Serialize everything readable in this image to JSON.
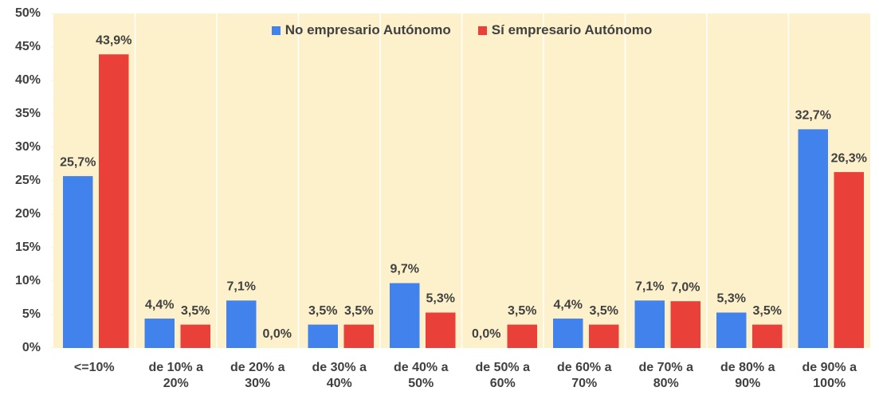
{
  "chart_data": {
    "type": "bar",
    "categories": [
      "<=10%",
      "de 10% a 20%",
      "de 20% a 30%",
      "de 30% a 40%",
      "de 40% a 50%",
      "de 50% a 60%",
      "de 60% a 70%",
      "de 70% a 80%",
      "de 80% a 90%",
      "de 90% a 100%"
    ],
    "series": [
      {
        "name": "No empresario Autónomo",
        "color": "#4282ec",
        "values": [
          25.7,
          4.4,
          7.1,
          3.5,
          9.7,
          0.0,
          4.4,
          7.1,
          5.3,
          32.7
        ],
        "value_labels": [
          "25,7%",
          "4,4%",
          "7,1%",
          "3,5%",
          "9,7%",
          "0,0%",
          "4,4%",
          "7,1%",
          "5,3%",
          "32,7%"
        ]
      },
      {
        "name": "Sí empresario Autónomo",
        "color": "#e9413a",
        "values": [
          43.9,
          3.5,
          0.0,
          3.5,
          5.3,
          3.5,
          3.5,
          7.0,
          3.5,
          26.3
        ],
        "value_labels": [
          "43,9%",
          "3,5%",
          "0,0%",
          "3,5%",
          "5,3%",
          "3,5%",
          "3,5%",
          "7,0%",
          "3,5%",
          "26,3%"
        ]
      }
    ],
    "ylim": [
      0,
      50
    ],
    "yticks": [
      {
        "value": 0,
        "label": "0%"
      },
      {
        "value": 5,
        "label": "5%"
      },
      {
        "value": 10,
        "label": "10%"
      },
      {
        "value": 15,
        "label": "15%"
      },
      {
        "value": 20,
        "label": "20%"
      },
      {
        "value": 25,
        "label": "25%"
      },
      {
        "value": 30,
        "label": "30%"
      },
      {
        "value": 35,
        "label": "35%"
      },
      {
        "value": 40,
        "label": "40%"
      },
      {
        "value": 45,
        "label": "45%"
      },
      {
        "value": 50,
        "label": "50%"
      }
    ],
    "legend": "top"
  }
}
